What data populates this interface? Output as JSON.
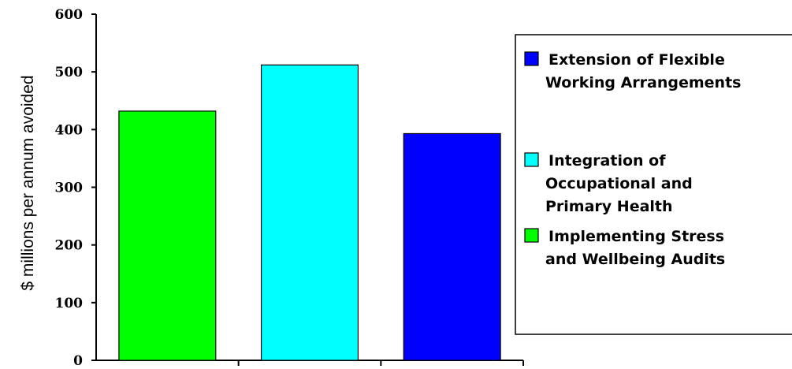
{
  "chart_data": {
    "type": "bar",
    "ylabel": "$ millions per annum avoided",
    "ylim": [
      0,
      600
    ],
    "yticks": [
      "0",
      "100",
      "200",
      "300",
      "400",
      "500",
      "600"
    ],
    "grid": false,
    "legend_position": "right",
    "bars": [
      {
        "name": "Implementing Stress and Wellbeing Audits",
        "value": 432,
        "color": "#00ff00"
      },
      {
        "name": "Integration of Occupational and Primary Health",
        "value": 512,
        "color": "#00ffff"
      },
      {
        "name": "Extension of Flexible Working Arrangements",
        "value": 393,
        "color": "#0000ff"
      }
    ],
    "legend": [
      {
        "lines": [
          "Extension of Flexible",
          "Working Arrangements"
        ],
        "color": "#0000ff"
      },
      {
        "lines": [
          "Integration of",
          "Occupational and",
          "Primary Health"
        ],
        "color": "#00ffff"
      },
      {
        "lines": [
          "Implementing Stress",
          "and Wellbeing Audits"
        ],
        "color": "#00ff00"
      }
    ]
  }
}
